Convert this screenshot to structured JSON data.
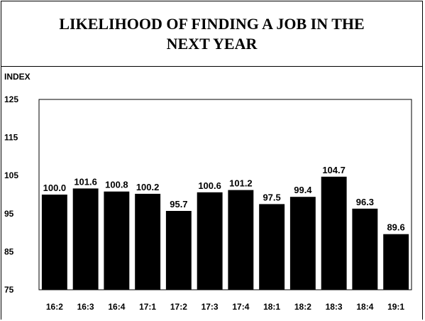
{
  "chart_data": {
    "type": "bar",
    "title": "LIKELIHOOD OF FINDING A JOB IN THE NEXT YEAR",
    "ylabel": "INDEX",
    "xlabel": "",
    "ylim": [
      75,
      125
    ],
    "yticks": [
      125,
      115,
      105,
      95,
      85,
      75
    ],
    "grid": false,
    "categories": [
      "16:2",
      "16:3",
      "16:4",
      "17:1",
      "17:2",
      "17:3",
      "17:4",
      "18:1",
      "18:2",
      "18:3",
      "18:4",
      "19:1"
    ],
    "values": [
      100.0,
      101.6,
      100.8,
      100.2,
      95.7,
      100.6,
      101.2,
      97.5,
      99.4,
      104.7,
      96.3,
      89.6
    ],
    "data_labels": [
      "100.0",
      "101.6",
      "100.8",
      "100.2",
      "95.7",
      "100.6",
      "101.2",
      "97.5",
      "99.4",
      "104.7",
      "96.3",
      "89.6"
    ],
    "bar_color": "#000000"
  }
}
